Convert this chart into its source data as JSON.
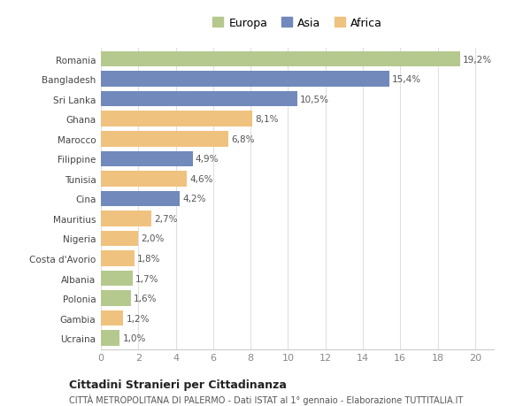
{
  "categories": [
    "Romania",
    "Bangladesh",
    "Sri Lanka",
    "Ghana",
    "Marocco",
    "Filippine",
    "Tunisia",
    "Cina",
    "Mauritius",
    "Nigeria",
    "Costa d'Avorio",
    "Albania",
    "Polonia",
    "Gambia",
    "Ucraina"
  ],
  "values": [
    19.2,
    15.4,
    10.5,
    8.1,
    6.8,
    4.9,
    4.6,
    4.2,
    2.7,
    2.0,
    1.8,
    1.7,
    1.6,
    1.2,
    1.0
  ],
  "labels": [
    "19,2%",
    "15,4%",
    "10,5%",
    "8,1%",
    "6,8%",
    "4,9%",
    "4,6%",
    "4,2%",
    "2,7%",
    "2,0%",
    "1,8%",
    "1,7%",
    "1,6%",
    "1,2%",
    "1,0%"
  ],
  "continents": [
    "Europa",
    "Asia",
    "Asia",
    "Africa",
    "Africa",
    "Asia",
    "Africa",
    "Asia",
    "Africa",
    "Africa",
    "Africa",
    "Europa",
    "Europa",
    "Africa",
    "Europa"
  ],
  "colors": {
    "Europa": "#b5c98e",
    "Asia": "#7189bb",
    "Africa": "#f0c27f"
  },
  "background_color": "#ffffff",
  "plot_bg_color": "#ffffff",
  "grid_color": "#e0e0e0",
  "title": "Cittadini Stranieri per Cittadinanza",
  "subtitle": "CITTÀ METROPOLITANA DI PALERMO - Dati ISTAT al 1° gennaio - Elaborazione TUTTITALIA.IT",
  "xlim": [
    0,
    21
  ],
  "xticks": [
    0,
    2,
    4,
    6,
    8,
    10,
    12,
    14,
    16,
    18,
    20
  ],
  "bar_height": 0.78,
  "label_fontsize": 7.5,
  "ytick_fontsize": 7.5,
  "xtick_fontsize": 8,
  "legend_fontsize": 9,
  "title_fontsize": 9,
  "subtitle_fontsize": 7
}
